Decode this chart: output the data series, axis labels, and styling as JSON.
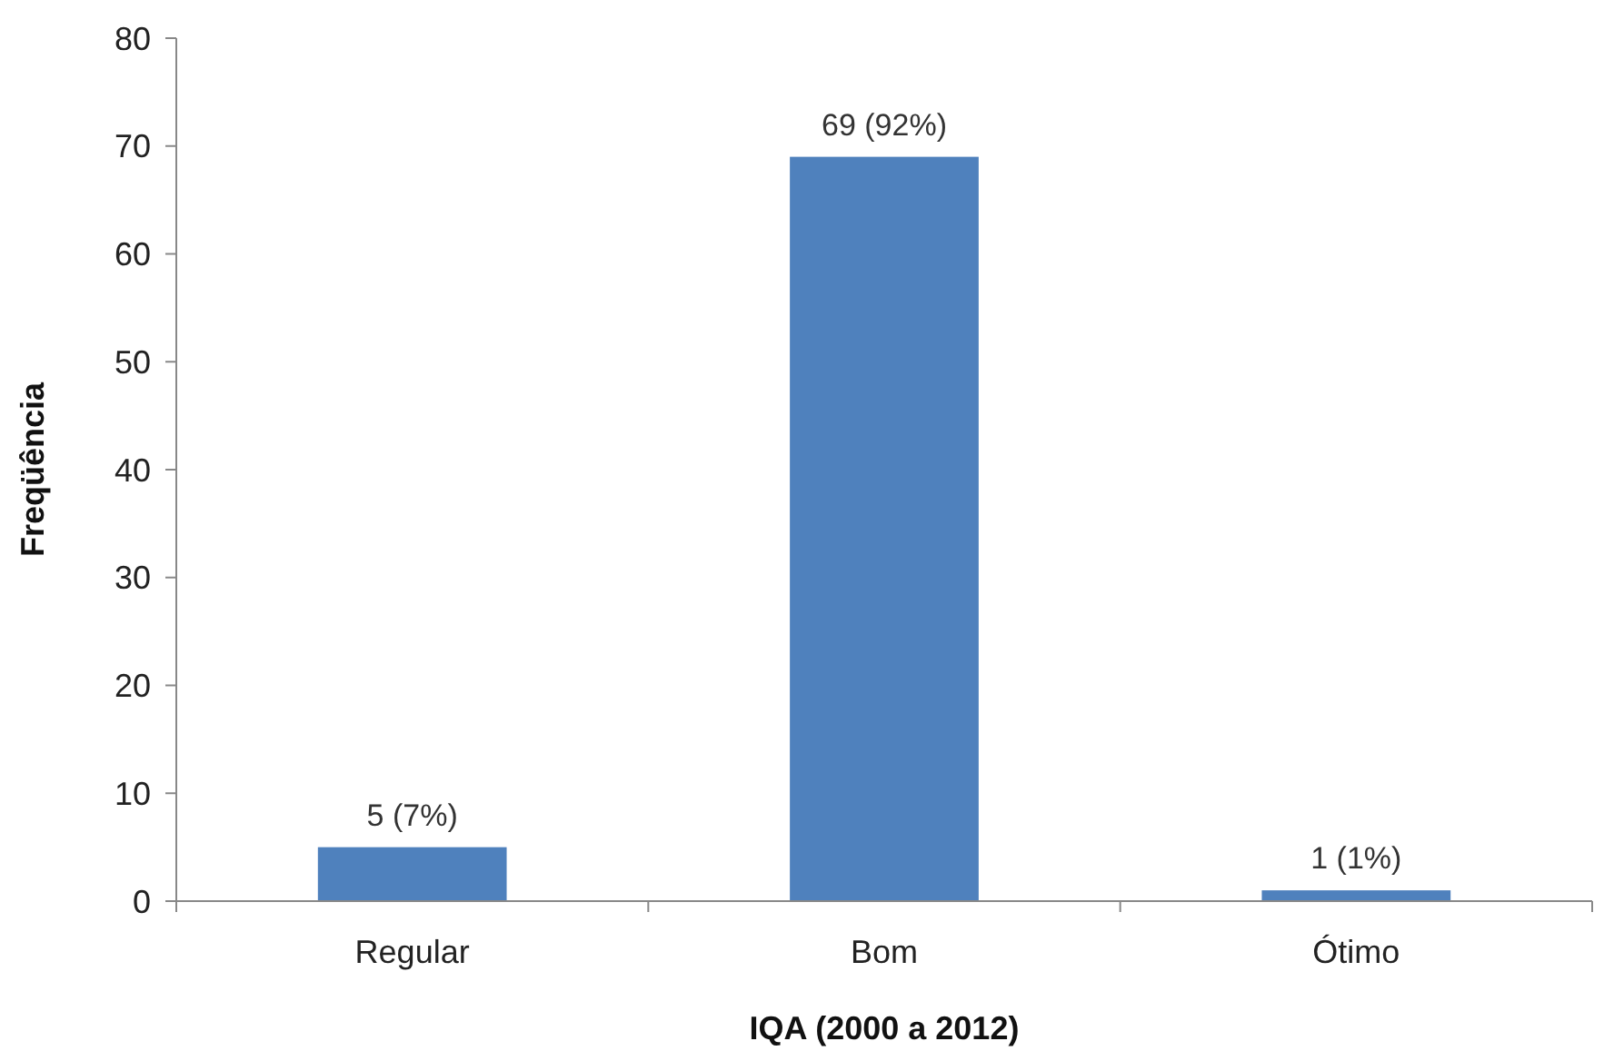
{
  "chart_data": {
    "type": "bar",
    "xlabel": "IQA (2000 a 2012)",
    "ylabel": "Freqüência",
    "categories": [
      "Regular",
      "Bom",
      "Ótimo"
    ],
    "values": [
      5,
      69,
      1
    ],
    "color": "#4f81bd",
    "value_labels": [
      "5 (7%)",
      "69 (92%)",
      "1 (1%)"
    ],
    "ylim": [
      0,
      80
    ],
    "yticks": [
      0,
      10,
      20,
      30,
      40,
      50,
      60,
      70,
      80
    ],
    "grid": false
  }
}
